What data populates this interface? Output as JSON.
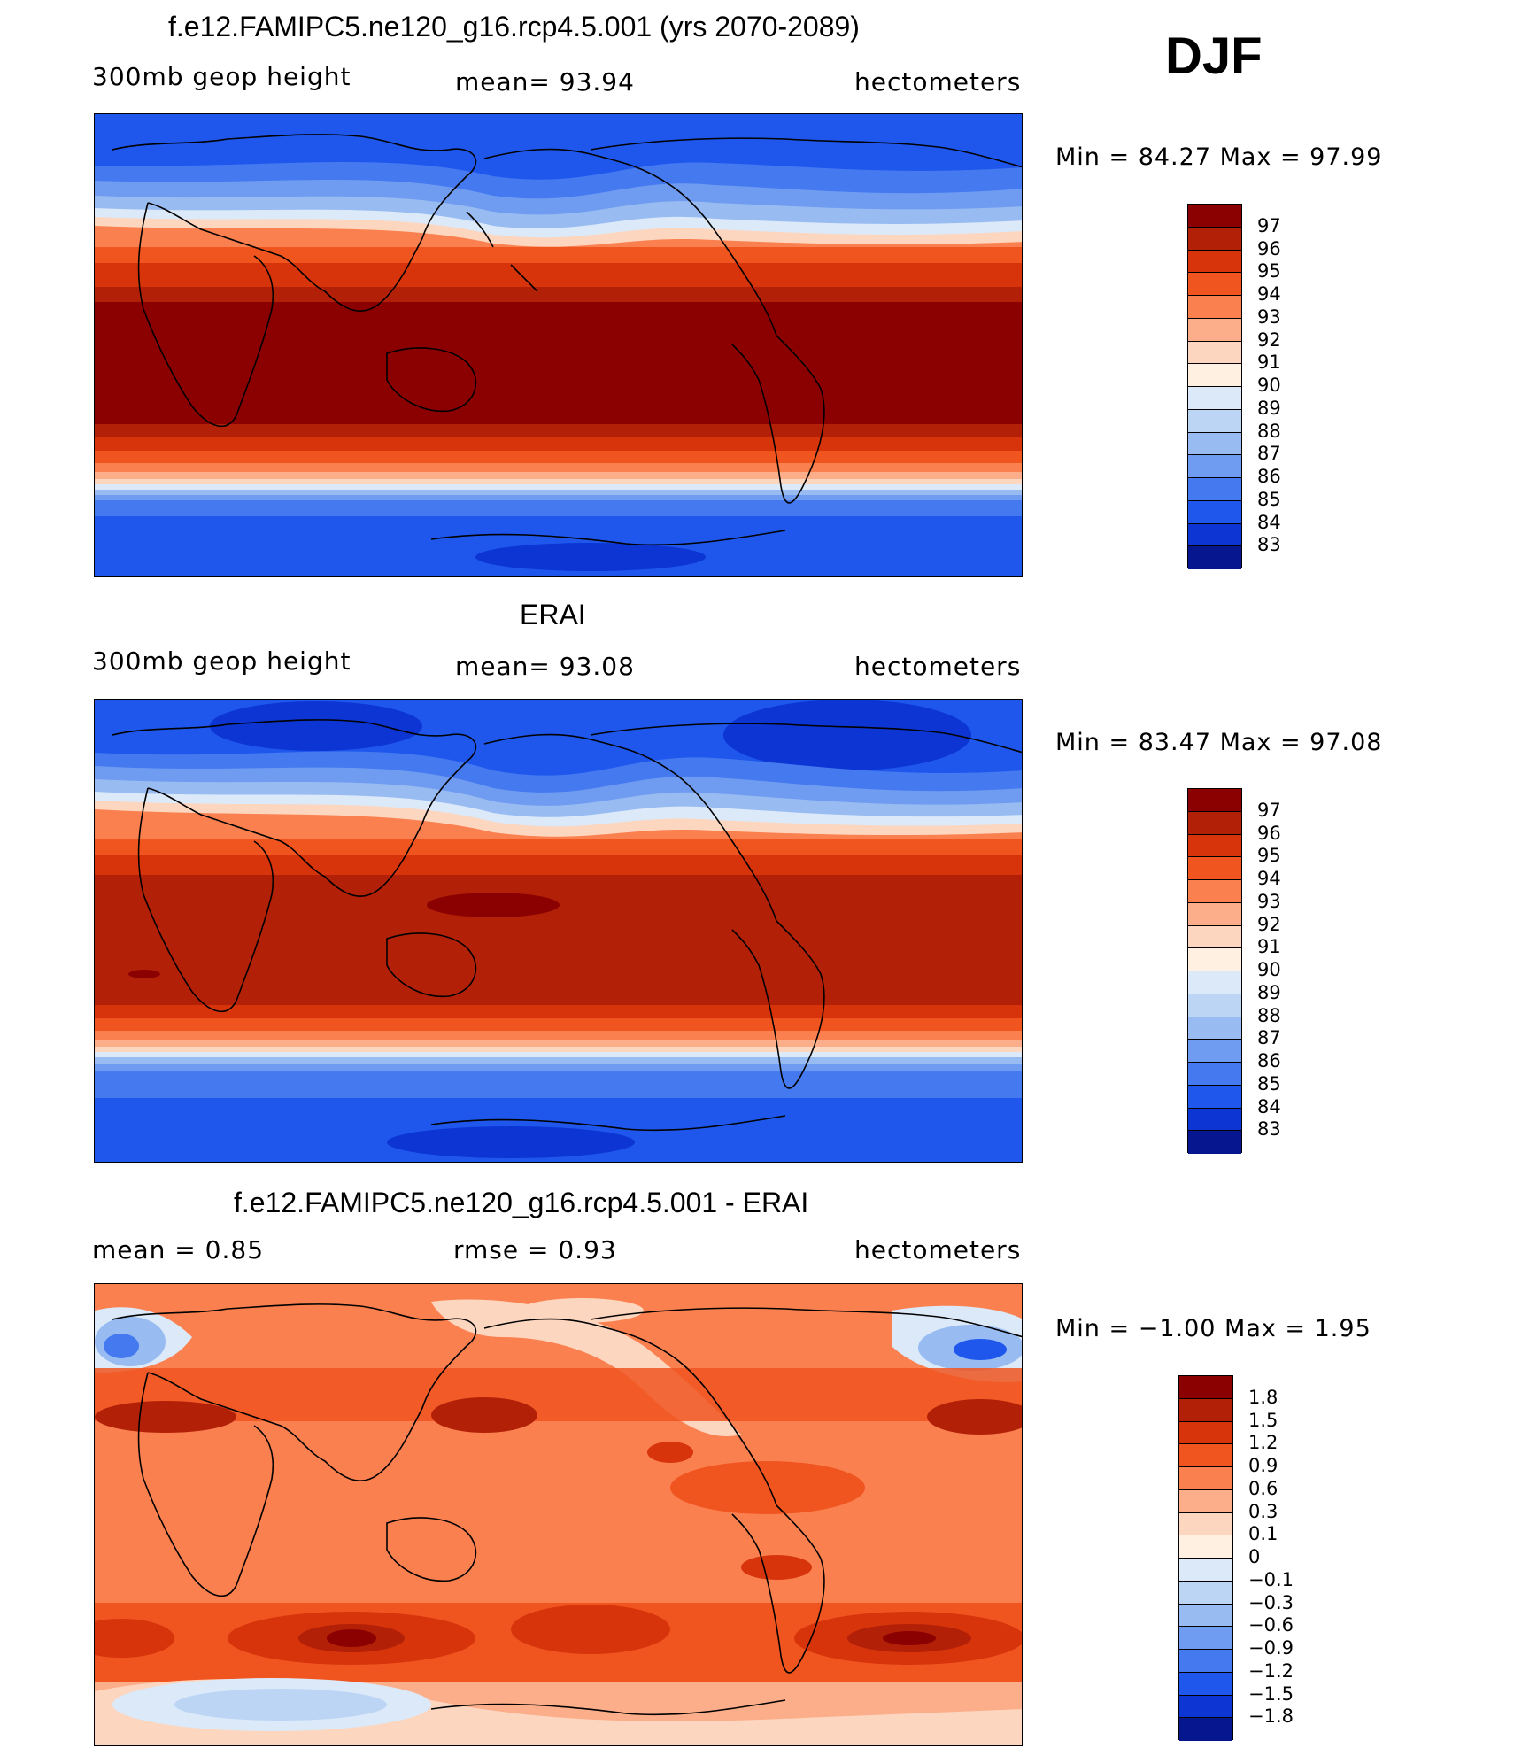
{
  "season": "DJF",
  "panels": [
    {
      "title": "f.e12.FAMIPC5.ne120_g16.rcp4.5.001 (yrs 2070-2089)",
      "left_label": "300mb  geop  height",
      "center_label": "mean=   93.94",
      "right_label": "hectometers",
      "minmax": "Min  =    84.27  Max  =    97.99",
      "legend_labels": [
        "97",
        "96",
        "95",
        "94",
        "93",
        "92",
        "91",
        "90",
        "89",
        "88",
        "87",
        "86",
        "85",
        "84",
        "83"
      ],
      "legend_colors": [
        "#8b0000",
        "#b32008",
        "#d8340c",
        "#f05520",
        "#fb8050",
        "#fcae8a",
        "#fdd6bf",
        "#fff0e2",
        "#dbe9f9",
        "#bcd5f5",
        "#98bbf2",
        "#6f9cf0",
        "#4479f0",
        "#1f57ed",
        "#0c35d4",
        "#05168f"
      ]
    },
    {
      "title": "ERAI",
      "left_label": "300mb  geop  height",
      "center_label": "mean=   93.08",
      "right_label": "hectometers",
      "minmax": "Min  =    83.47  Max  =    97.08",
      "legend_labels": [
        "97",
        "96",
        "95",
        "94",
        "93",
        "92",
        "91",
        "90",
        "89",
        "88",
        "87",
        "86",
        "85",
        "84",
        "83"
      ],
      "legend_colors": [
        "#8b0000",
        "#b32008",
        "#d8340c",
        "#f05520",
        "#fb8050",
        "#fcae8a",
        "#fdd6bf",
        "#fff0e2",
        "#dbe9f9",
        "#bcd5f5",
        "#98bbf2",
        "#6f9cf0",
        "#4479f0",
        "#1f57ed",
        "#0c35d4",
        "#05168f"
      ]
    },
    {
      "title": "f.e12.FAMIPC5.ne120_g16.rcp4.5.001 - ERAI",
      "left_label": "mean  =     0.85",
      "center_label": "rmse  =     0.93",
      "right_label": "hectometers",
      "minmax": "Min  =   −1.00  Max  =      1.95",
      "legend_labels": [
        "1.8",
        "1.5",
        "1.2",
        "0.9",
        "0.6",
        "0.3",
        "0.1",
        "0",
        "−0.1",
        "−0.3",
        "−0.6",
        "−0.9",
        "−1.2",
        "−1.5",
        "−1.8"
      ],
      "legend_colors": [
        "#8b0000",
        "#b32008",
        "#d8340c",
        "#f05520",
        "#fb8050",
        "#fcae8a",
        "#fdd6bf",
        "#fff0e2",
        "#dbe9f9",
        "#bcd5f5",
        "#98bbf2",
        "#6f9cf0",
        "#4479f0",
        "#1f57ed",
        "#0c35d4",
        "#05168f"
      ]
    }
  ]
}
